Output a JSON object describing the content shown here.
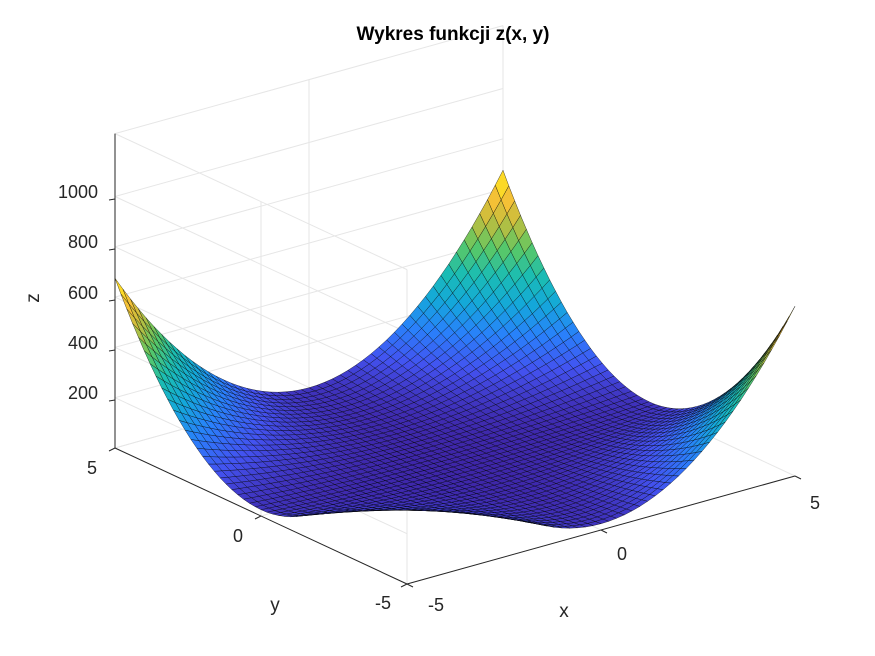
{
  "chart_data": {
    "type": "surface",
    "title": "Wykres funkcji z(x, y)",
    "xlabel": "x",
    "ylabel": "y",
    "zlabel": "z",
    "xlim": [
      -5,
      5
    ],
    "ylim": [
      -5,
      5
    ],
    "zlim": [
      0,
      1250
    ],
    "xticks": [
      "-5",
      "0",
      "5"
    ],
    "yticks": [
      "-5",
      "0",
      "5"
    ],
    "zticks": [
      "200",
      "400",
      "600",
      "800",
      "1000"
    ],
    "zticks_values": [
      200,
      400,
      600,
      800,
      1000
    ],
    "grid": true,
    "colormap": "parula",
    "function": "z = x^2 * y^2 + x^2 + y^2 (approximate reconstruction)",
    "grid_points": 51,
    "samples": [
      {
        "x": -5,
        "y": -5,
        "z": 675
      },
      {
        "x": 5,
        "y": -5,
        "z": 675
      },
      {
        "x": -5,
        "y": 5,
        "z": 675
      },
      {
        "x": 5,
        "y": 5,
        "z": 675
      },
      {
        "x": 0,
        "y": 0,
        "z": 0
      }
    ]
  },
  "colors": {
    "colormap_stops": [
      "#3e26a8",
      "#4352f0",
      "#2981fb",
      "#14a8da",
      "#1bbdb2",
      "#5bc864",
      "#c2bd3e",
      "#fec234",
      "#f9fb14"
    ],
    "edge": "#000000",
    "axis": "#262626",
    "grid": "#e6e6e6"
  }
}
